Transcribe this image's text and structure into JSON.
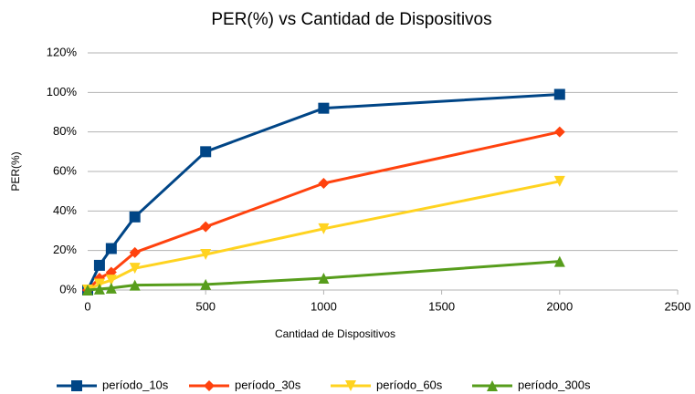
{
  "chart_data": {
    "type": "line",
    "title": "PER(%) vs Cantidad de Dispositivos",
    "x_label": "Cantidad de Dispositivos",
    "y_label": "PER(%)",
    "x": [
      0,
      50,
      100,
      200,
      500,
      1000,
      2000
    ],
    "series": [
      {
        "name": "período_10s",
        "color": "#004586",
        "marker": "square",
        "values": [
          0,
          12.5,
          21,
          37,
          70,
          92,
          99
        ]
      },
      {
        "name": "período_30s",
        "color": "#ff420e",
        "marker": "diamond",
        "values": [
          0,
          6,
          9,
          19,
          32,
          54,
          80
        ]
      },
      {
        "name": "período_60s",
        "color": "#ffd320",
        "marker": "triangle-down",
        "values": [
          0,
          3,
          5,
          11,
          18,
          31,
          55
        ]
      },
      {
        "name": "período_300s",
        "color": "#579d1c",
        "marker": "triangle-up",
        "values": [
          0,
          0.5,
          1,
          2.5,
          2.8,
          6,
          14.5
        ]
      }
    ],
    "xlim": [
      0,
      2500
    ],
    "xticks": [
      0,
      500,
      1000,
      1500,
      2000,
      2500
    ],
    "ylim": [
      0,
      120
    ],
    "yticks": [
      {
        "value": 0,
        "label": "0%"
      },
      {
        "value": 20,
        "label": "20%"
      },
      {
        "value": 40,
        "label": "40%"
      },
      {
        "value": 60,
        "label": "60%"
      },
      {
        "value": 80,
        "label": "80%"
      },
      {
        "value": 100,
        "label": "100%"
      },
      {
        "value": 120,
        "label": "120%"
      }
    ],
    "grid": true,
    "legend": "bottom"
  }
}
